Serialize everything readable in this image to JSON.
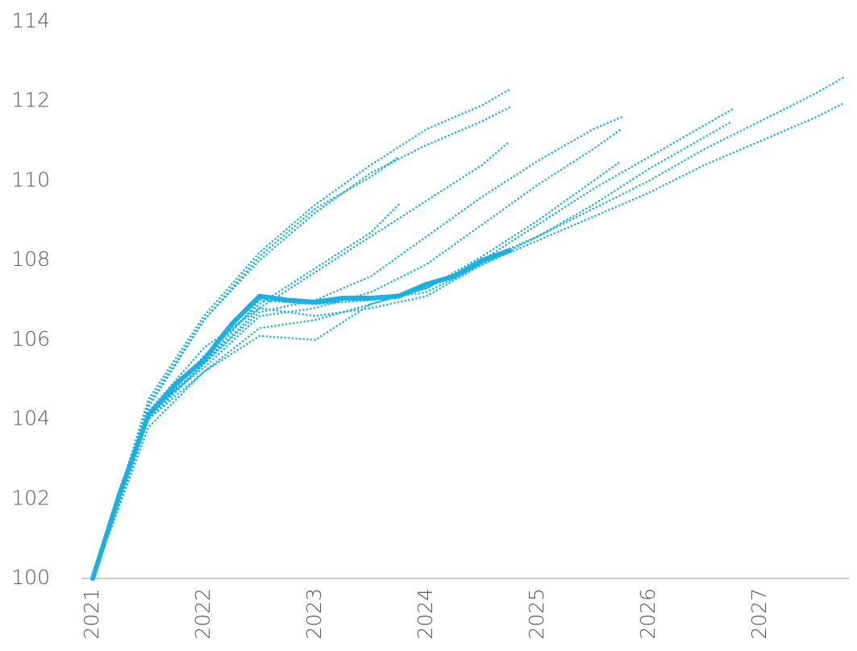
{
  "chart_data": {
    "type": "line",
    "color": "#1ab0e2",
    "xlim": [
      2020.9,
      2027.8
    ],
    "xticks": [
      2021,
      2022,
      2023,
      2024,
      2025,
      2026,
      2027
    ],
    "ylim": [
      100,
      114
    ],
    "yticks": [
      100,
      102,
      104,
      106,
      108,
      110,
      112,
      114
    ],
    "grid": false,
    "series": [
      {
        "style": "dotted",
        "x": [
          2021,
          2021.5,
          2022,
          2022.5,
          2023,
          2023.5,
          2024,
          2024.5,
          2024.75
        ],
        "values": [
          100,
          104.5,
          106.6,
          108.2,
          109.4,
          110.4,
          111.3,
          111.9,
          112.3
        ]
      },
      {
        "style": "dotted",
        "x": [
          2021,
          2021.5,
          2022,
          2022.5,
          2023,
          2023.5,
          2024,
          2024.5,
          2024.75
        ],
        "values": [
          100,
          104.3,
          106.5,
          108.0,
          109.2,
          110.2,
          110.9,
          111.5,
          111.85
        ]
      },
      {
        "style": "dotted",
        "x": [
          2021,
          2021.5,
          2022,
          2022.5,
          2023,
          2023.5,
          2023.75
        ],
        "values": [
          100,
          104.4,
          106.5,
          108.1,
          109.3,
          110.1,
          110.6
        ]
      },
      {
        "style": "dotted",
        "x": [
          2021,
          2021.5,
          2022,
          2022.5,
          2023,
          2023.5,
          2024,
          2024.5,
          2024.75
        ],
        "values": [
          100,
          104.2,
          105.8,
          106.8,
          107.7,
          108.6,
          109.5,
          110.4,
          111.0
        ]
      },
      {
        "style": "dotted",
        "x": [
          2021,
          2021.5,
          2022,
          2022.5,
          2023,
          2023.5,
          2023.75
        ],
        "values": [
          100,
          104.0,
          105.6,
          106.9,
          107.8,
          108.7,
          109.4
        ]
      },
      {
        "style": "dotted",
        "x": [
          2021,
          2021.5,
          2022,
          2022.5,
          2023,
          2023.5,
          2024,
          2024.5,
          2025,
          2025.5,
          2025.75
        ],
        "values": [
          100,
          104.0,
          105.4,
          106.7,
          107.0,
          107.6,
          108.6,
          109.6,
          110.5,
          111.3,
          111.6
        ]
      },
      {
        "style": "dotted",
        "x": [
          2021,
          2021.5,
          2022,
          2022.5,
          2023,
          2023.5,
          2024,
          2024.5,
          2025,
          2025.5,
          2025.75
        ],
        "values": [
          100,
          104.2,
          105.3,
          106.6,
          106.8,
          107.2,
          107.9,
          108.9,
          109.9,
          110.8,
          111.3
        ]
      },
      {
        "style": "dotted",
        "x": [
          2021,
          2021.5,
          2022,
          2022.5,
          2023,
          2023.5,
          2024,
          2024.5,
          2025,
          2025.5,
          2025.75
        ],
        "values": [
          100,
          103.8,
          105.2,
          106.3,
          106.5,
          106.9,
          107.3,
          108.1,
          109.0,
          110.0,
          110.5
        ]
      },
      {
        "style": "dotted",
        "x": [
          2021,
          2021.5,
          2022,
          2022.5,
          2023,
          2023.5,
          2024,
          2024.5,
          2025,
          2025.5,
          2026,
          2026.5,
          2026.75
        ],
        "values": [
          100,
          104.0,
          105.2,
          106.1,
          106.0,
          106.9,
          107.3,
          108.0,
          108.9,
          109.8,
          110.6,
          111.4,
          111.8
        ]
      },
      {
        "style": "dotted",
        "x": [
          2021,
          2021.5,
          2022,
          2022.5,
          2023,
          2023.5,
          2024,
          2024.5,
          2025,
          2025.5,
          2026,
          2026.5,
          2026.75
        ],
        "values": [
          100,
          104.1,
          105.4,
          106.8,
          106.6,
          106.8,
          107.1,
          107.9,
          108.6,
          109.4,
          110.3,
          111.1,
          111.5
        ]
      },
      {
        "style": "dotted",
        "x": [
          2021,
          2021.5,
          2022,
          2022.5,
          2023,
          2023.5,
          2024,
          2024.5,
          2025,
          2025.5,
          2026,
          2026.5,
          2027,
          2027.5,
          2027.75
        ],
        "values": [
          100,
          104.1,
          105.4,
          107.0,
          106.9,
          107.0,
          107.3,
          108.0,
          108.6,
          109.3,
          110.0,
          110.8,
          111.5,
          112.2,
          112.6
        ]
      },
      {
        "style": "dotted",
        "x": [
          2021,
          2021.5,
          2022,
          2022.5,
          2023,
          2023.5,
          2024,
          2024.5,
          2025,
          2025.5,
          2026,
          2026.5,
          2027,
          2027.5,
          2027.75
        ],
        "values": [
          100,
          104.1,
          105.4,
          107.0,
          106.9,
          107.0,
          107.2,
          107.9,
          108.5,
          109.1,
          109.7,
          110.4,
          111.0,
          111.6,
          111.95
        ]
      },
      {
        "style": "solid",
        "x": [
          2021,
          2021.25,
          2021.5,
          2021.75,
          2022,
          2022.25,
          2022.5,
          2022.75,
          2023,
          2023.25,
          2023.5,
          2023.75,
          2024,
          2024.25,
          2024.5,
          2024.75
        ],
        "values": [
          100,
          102.2,
          104.1,
          104.9,
          105.5,
          106.4,
          107.1,
          107.0,
          106.95,
          107.05,
          107.05,
          107.1,
          107.4,
          107.6,
          108.0,
          108.25
        ]
      }
    ]
  }
}
